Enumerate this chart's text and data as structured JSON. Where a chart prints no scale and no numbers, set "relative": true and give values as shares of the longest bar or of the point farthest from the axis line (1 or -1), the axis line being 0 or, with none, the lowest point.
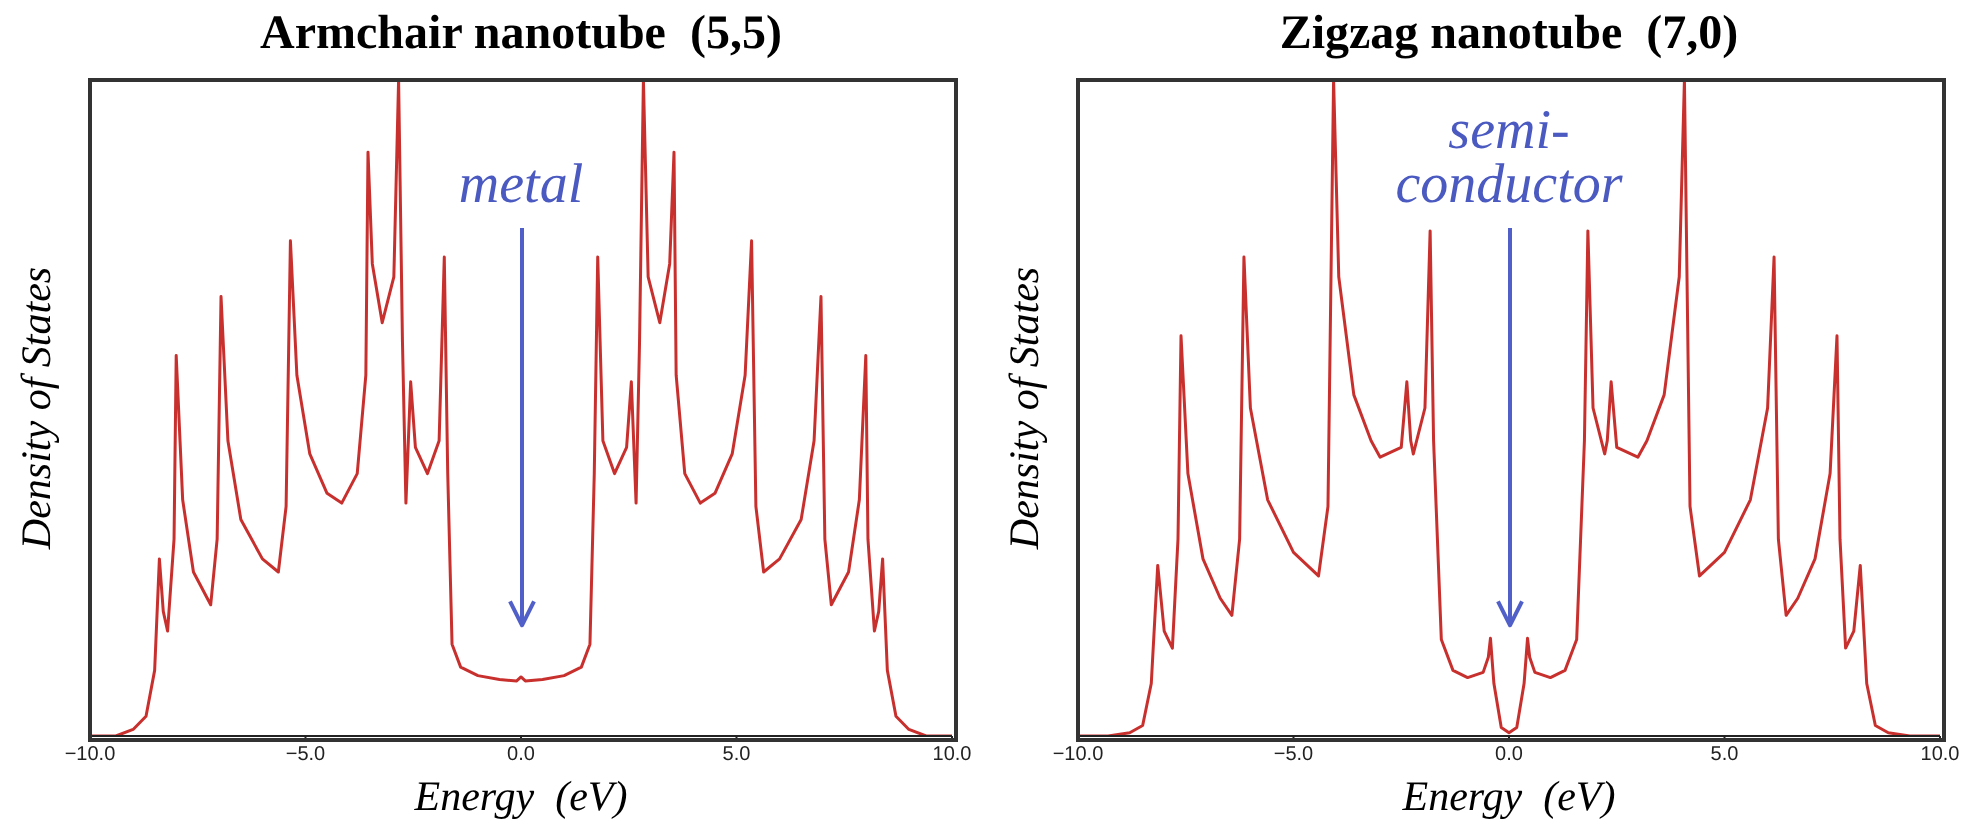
{
  "chart_data": [
    {
      "type": "line",
      "title": "Armchair nanotube  (5,5)",
      "xlabel": "Energy  (eV)",
      "ylabel": "Density of States",
      "relative": true,
      "xlim": [
        -10,
        10
      ],
      "xticks": [
        {
          "value": -10,
          "label": "−10.0"
        },
        {
          "value": -5,
          "label": "−5.0"
        },
        {
          "value": 0,
          "label": "0.0"
        },
        {
          "value": 5,
          "label": "5.0"
        },
        {
          "value": 10,
          "label": "10.0"
        }
      ],
      "annotations": [
        "metal"
      ],
      "series": [
        {
          "color": "#c8302e",
          "x": [
            -10,
            -9.4,
            -9.0,
            -8.7,
            -8.5,
            -8.39,
            -8.3,
            -8.2,
            -8.05,
            -8.0,
            -7.85,
            -7.6,
            -7.2,
            -7.05,
            -6.96,
            -6.8,
            -6.5,
            -6.0,
            -5.63,
            -5.45,
            -5.35,
            -5.2,
            -4.9,
            -4.5,
            -4.16,
            -3.8,
            -3.6,
            -3.55,
            -3.45,
            -3.22,
            -2.95,
            -2.84,
            -2.75,
            -2.67,
            -2.56,
            -2.45,
            -2.17,
            -1.9,
            -1.78,
            -1.7,
            -1.6,
            -1.4,
            -1.0,
            -0.5,
            -0.1,
            0,
            0.1,
            0.5,
            1.0,
            1.4,
            1.6,
            1.7,
            1.78,
            1.9,
            2.17,
            2.45,
            2.56,
            2.67,
            2.75,
            2.84,
            2.95,
            3.22,
            3.45,
            3.55,
            3.6,
            3.8,
            4.16,
            4.5,
            4.9,
            5.2,
            5.35,
            5.45,
            5.63,
            6.0,
            6.5,
            6.8,
            6.96,
            7.05,
            7.2,
            7.6,
            7.85,
            8.0,
            8.05,
            8.2,
            8.3,
            8.39,
            8.5,
            8.7,
            9.0,
            9.4,
            10
          ],
          "values": [
            0,
            0,
            0.01,
            0.03,
            0.1,
            0.27,
            0.19,
            0.16,
            0.3,
            0.58,
            0.36,
            0.25,
            0.2,
            0.3,
            0.67,
            0.45,
            0.33,
            0.27,
            0.25,
            0.35,
            0.755,
            0.55,
            0.43,
            0.37,
            0.355,
            0.4,
            0.55,
            0.89,
            0.72,
            0.63,
            0.7,
            1.0,
            0.6,
            0.355,
            0.54,
            0.44,
            0.4,
            0.45,
            0.73,
            0.4,
            0.14,
            0.105,
            0.092,
            0.086,
            0.084,
            0.09,
            0.084,
            0.086,
            0.092,
            0.105,
            0.14,
            0.4,
            0.73,
            0.45,
            0.4,
            0.44,
            0.54,
            0.355,
            0.6,
            1.0,
            0.7,
            0.63,
            0.72,
            0.89,
            0.55,
            0.4,
            0.355,
            0.37,
            0.43,
            0.55,
            0.755,
            0.35,
            0.25,
            0.27,
            0.33,
            0.45,
            0.67,
            0.3,
            0.2,
            0.25,
            0.36,
            0.58,
            0.3,
            0.16,
            0.19,
            0.27,
            0.1,
            0.03,
            0.01,
            0,
            0
          ]
        }
      ]
    },
    {
      "type": "line",
      "title": "Zigzag nanotube  (7,0)",
      "xlabel": "Energy  (eV)",
      "ylabel": "Density of States",
      "relative": true,
      "xlim": [
        -10,
        10
      ],
      "xticks": [
        {
          "value": -10,
          "label": "−10.0"
        },
        {
          "value": -5,
          "label": "−5.0"
        },
        {
          "value": 0,
          "label": "0.0"
        },
        {
          "value": 5,
          "label": "5.0"
        },
        {
          "value": 10,
          "label": "10.0"
        }
      ],
      "annotations": [
        "semi-\nconductor"
      ],
      "series": [
        {
          "color": "#c8302e",
          "x": [
            -10,
            -9.3,
            -8.8,
            -8.5,
            -8.3,
            -8.15,
            -8.0,
            -7.81,
            -7.68,
            -7.61,
            -7.45,
            -7.1,
            -6.7,
            -6.43,
            -6.25,
            -6.15,
            -6.0,
            -5.6,
            -5.0,
            -4.42,
            -4.2,
            -4.07,
            -3.95,
            -3.6,
            -3.2,
            -2.99,
            -2.5,
            -2.37,
            -2.28,
            -2.22,
            -1.95,
            -1.83,
            -1.75,
            -1.57,
            -1.3,
            -0.96,
            -0.6,
            -0.48,
            -0.43,
            -0.35,
            -0.18,
            0,
            0.18,
            0.35,
            0.43,
            0.48,
            0.6,
            0.96,
            1.3,
            1.57,
            1.75,
            1.83,
            1.95,
            2.22,
            2.28,
            2.37,
            2.5,
            2.99,
            3.2,
            3.6,
            3.95,
            4.07,
            4.2,
            4.42,
            5.0,
            5.6,
            6.0,
            6.15,
            6.25,
            6.43,
            6.7,
            7.1,
            7.45,
            7.61,
            7.68,
            7.81,
            8.0,
            8.15,
            8.3,
            8.5,
            8.8,
            9.3,
            10
          ],
          "values": [
            0,
            0,
            0.005,
            0.016,
            0.08,
            0.26,
            0.16,
            0.134,
            0.3,
            0.61,
            0.4,
            0.27,
            0.21,
            0.184,
            0.3,
            0.73,
            0.5,
            0.36,
            0.28,
            0.244,
            0.35,
            1.0,
            0.7,
            0.52,
            0.45,
            0.425,
            0.44,
            0.54,
            0.45,
            0.43,
            0.5,
            0.77,
            0.45,
            0.147,
            0.1,
            0.089,
            0.097,
            0.12,
            0.149,
            0.08,
            0.013,
            0.005,
            0.013,
            0.08,
            0.149,
            0.12,
            0.097,
            0.089,
            0.1,
            0.147,
            0.45,
            0.77,
            0.5,
            0.43,
            0.45,
            0.54,
            0.44,
            0.425,
            0.45,
            0.52,
            0.7,
            1.0,
            0.35,
            0.244,
            0.28,
            0.36,
            0.5,
            0.73,
            0.3,
            0.184,
            0.21,
            0.27,
            0.4,
            0.61,
            0.3,
            0.134,
            0.16,
            0.26,
            0.08,
            0.016,
            0.005,
            0,
            0
          ]
        }
      ]
    }
  ]
}
